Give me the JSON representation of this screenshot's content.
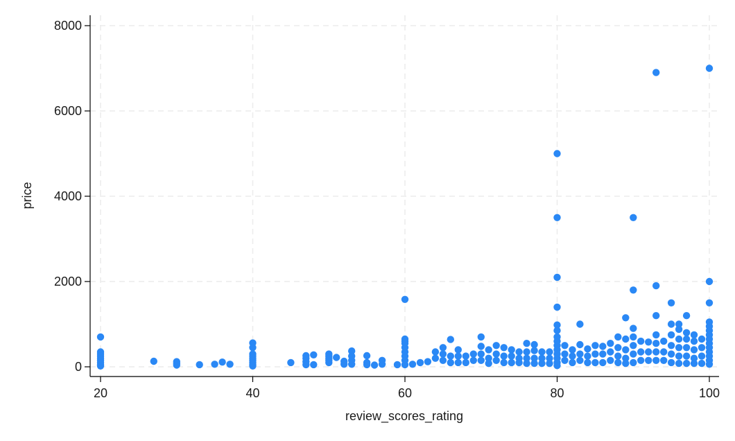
{
  "chart_data": {
    "type": "scatter",
    "xlabel": "review_scores_rating",
    "ylabel": "price",
    "xlim": [
      20,
      100
    ],
    "ylim": [
      0,
      8000
    ],
    "x_ticks": [
      20,
      40,
      60,
      80,
      100
    ],
    "y_ticks": [
      0,
      2000,
      4000,
      6000,
      8000
    ],
    "x_tick_labels": [
      "20",
      "40",
      "60",
      "80",
      "100"
    ],
    "y_tick_labels": [
      "0",
      "2000",
      "4000",
      "6000",
      "8000"
    ],
    "grid": true,
    "legend": "none",
    "marker_color": "#2a88f5",
    "series": [
      {
        "points": [
          [
            20,
            700
          ],
          [
            20,
            350
          ],
          [
            20,
            300
          ],
          [
            20,
            250
          ],
          [
            20,
            200
          ],
          [
            20,
            150
          ],
          [
            20,
            100
          ],
          [
            20,
            50
          ],
          [
            20,
            20
          ],
          [
            27,
            130
          ],
          [
            30,
            120
          ],
          [
            30,
            80
          ],
          [
            30,
            40
          ],
          [
            33,
            50
          ],
          [
            35,
            60
          ],
          [
            36,
            110
          ],
          [
            37,
            60
          ],
          [
            40,
            560
          ],
          [
            40,
            450
          ],
          [
            40,
            300
          ],
          [
            40,
            250
          ],
          [
            40,
            200
          ],
          [
            40,
            150
          ],
          [
            40,
            100
          ],
          [
            40,
            50
          ],
          [
            40,
            20
          ],
          [
            45,
            100
          ],
          [
            47,
            260
          ],
          [
            47,
            200
          ],
          [
            47,
            120
          ],
          [
            47,
            50
          ],
          [
            48,
            280
          ],
          [
            48,
            50
          ],
          [
            50,
            300
          ],
          [
            50,
            250
          ],
          [
            50,
            200
          ],
          [
            50,
            150
          ],
          [
            50,
            100
          ],
          [
            51,
            220
          ],
          [
            52,
            130
          ],
          [
            52,
            60
          ],
          [
            53,
            370
          ],
          [
            53,
            250
          ],
          [
            53,
            150
          ],
          [
            53,
            60
          ],
          [
            55,
            260
          ],
          [
            55,
            100
          ],
          [
            55,
            50
          ],
          [
            56,
            40
          ],
          [
            57,
            150
          ],
          [
            57,
            60
          ],
          [
            59,
            50
          ],
          [
            60,
            1580
          ],
          [
            60,
            650
          ],
          [
            60,
            600
          ],
          [
            60,
            550
          ],
          [
            60,
            450
          ],
          [
            60,
            350
          ],
          [
            60,
            250
          ],
          [
            60,
            150
          ],
          [
            60,
            50
          ],
          [
            61,
            60
          ],
          [
            62,
            100
          ],
          [
            63,
            120
          ],
          [
            64,
            200
          ],
          [
            64,
            350
          ],
          [
            65,
            450
          ],
          [
            65,
            300
          ],
          [
            65,
            150
          ],
          [
            66,
            640
          ],
          [
            66,
            250
          ],
          [
            66,
            100
          ],
          [
            67,
            400
          ],
          [
            67,
            250
          ],
          [
            67,
            100
          ],
          [
            68,
            250
          ],
          [
            68,
            100
          ],
          [
            69,
            300
          ],
          [
            69,
            150
          ],
          [
            70,
            700
          ],
          [
            70,
            480
          ],
          [
            70,
            300
          ],
          [
            70,
            150
          ],
          [
            71,
            400
          ],
          [
            71,
            200
          ],
          [
            71,
            80
          ],
          [
            72,
            500
          ],
          [
            72,
            300
          ],
          [
            72,
            150
          ],
          [
            73,
            450
          ],
          [
            73,
            250
          ],
          [
            73,
            100
          ],
          [
            74,
            400
          ],
          [
            74,
            250
          ],
          [
            74,
            100
          ],
          [
            75,
            350
          ],
          [
            75,
            200
          ],
          [
            75,
            100
          ],
          [
            76,
            550
          ],
          [
            76,
            350
          ],
          [
            76,
            200
          ],
          [
            76,
            80
          ],
          [
            77,
            520
          ],
          [
            77,
            380
          ],
          [
            77,
            200
          ],
          [
            77,
            80
          ],
          [
            78,
            350
          ],
          [
            78,
            200
          ],
          [
            78,
            80
          ],
          [
            79,
            350
          ],
          [
            79,
            200
          ],
          [
            79,
            80
          ],
          [
            80,
            5000
          ],
          [
            80,
            3500
          ],
          [
            80,
            2100
          ],
          [
            80,
            1400
          ],
          [
            80,
            980
          ],
          [
            80,
            850
          ],
          [
            80,
            700
          ],
          [
            80,
            600
          ],
          [
            80,
            500
          ],
          [
            80,
            400
          ],
          [
            80,
            300
          ],
          [
            80,
            200
          ],
          [
            80,
            100
          ],
          [
            80,
            30
          ],
          [
            81,
            500
          ],
          [
            81,
            300
          ],
          [
            81,
            150
          ],
          [
            82,
            400
          ],
          [
            82,
            250
          ],
          [
            82,
            100
          ],
          [
            83,
            1000
          ],
          [
            83,
            520
          ],
          [
            83,
            300
          ],
          [
            83,
            150
          ],
          [
            84,
            420
          ],
          [
            84,
            250
          ],
          [
            84,
            100
          ],
          [
            85,
            500
          ],
          [
            85,
            300
          ],
          [
            85,
            100
          ],
          [
            86,
            480
          ],
          [
            86,
            300
          ],
          [
            86,
            100
          ],
          [
            87,
            550
          ],
          [
            87,
            350
          ],
          [
            87,
            150
          ],
          [
            88,
            700
          ],
          [
            88,
            450
          ],
          [
            88,
            250
          ],
          [
            88,
            100
          ],
          [
            89,
            1150
          ],
          [
            89,
            650
          ],
          [
            89,
            400
          ],
          [
            89,
            200
          ],
          [
            89,
            80
          ],
          [
            90,
            3500
          ],
          [
            90,
            1800
          ],
          [
            90,
            900
          ],
          [
            90,
            700
          ],
          [
            90,
            500
          ],
          [
            90,
            300
          ],
          [
            90,
            100
          ],
          [
            91,
            600
          ],
          [
            91,
            350
          ],
          [
            91,
            150
          ],
          [
            92,
            580
          ],
          [
            92,
            350
          ],
          [
            92,
            150
          ],
          [
            93,
            6900
          ],
          [
            93,
            1900
          ],
          [
            93,
            1200
          ],
          [
            93,
            750
          ],
          [
            93,
            550
          ],
          [
            93,
            350
          ],
          [
            93,
            150
          ],
          [
            94,
            600
          ],
          [
            94,
            350
          ],
          [
            94,
            150
          ],
          [
            95,
            1500
          ],
          [
            95,
            1000
          ],
          [
            95,
            750
          ],
          [
            95,
            500
          ],
          [
            95,
            300
          ],
          [
            95,
            100
          ],
          [
            96,
            1000
          ],
          [
            96,
            880
          ],
          [
            96,
            650
          ],
          [
            96,
            450
          ],
          [
            96,
            250
          ],
          [
            96,
            80
          ],
          [
            97,
            1200
          ],
          [
            97,
            800
          ],
          [
            97,
            650
          ],
          [
            97,
            450
          ],
          [
            97,
            250
          ],
          [
            97,
            80
          ],
          [
            98,
            750
          ],
          [
            98,
            600
          ],
          [
            98,
            400
          ],
          [
            98,
            200
          ],
          [
            98,
            80
          ],
          [
            99,
            650
          ],
          [
            99,
            450
          ],
          [
            99,
            250
          ],
          [
            99,
            80
          ],
          [
            100,
            7000
          ],
          [
            100,
            2000
          ],
          [
            100,
            1500
          ],
          [
            100,
            1050
          ],
          [
            100,
            950
          ],
          [
            100,
            850
          ],
          [
            100,
            750
          ],
          [
            100,
            650
          ],
          [
            100,
            550
          ],
          [
            100,
            450
          ],
          [
            100,
            350
          ],
          [
            100,
            250
          ],
          [
            100,
            150
          ],
          [
            100,
            60
          ]
        ]
      }
    ]
  }
}
